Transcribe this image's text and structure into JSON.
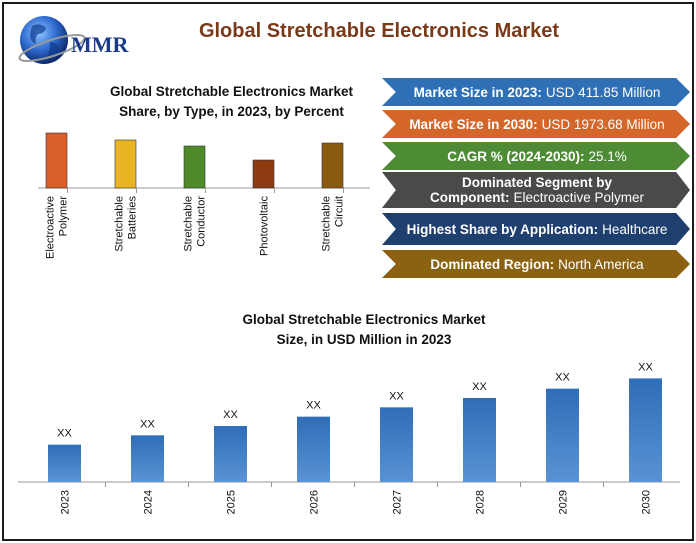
{
  "header": {
    "logo_text": "MMR",
    "title": "Global Stretchable Electronics Market"
  },
  "info_boxes": [
    {
      "label": "Market Size in 2023:",
      "value": "USD 411.85 Million",
      "color": "#2e6fb5"
    },
    {
      "label": "Market Size in 2030:",
      "value": "USD 1973.68 Million",
      "color": "#d4662a"
    },
    {
      "label": "CAGR % (2024-2030):",
      "value": "25.1%",
      "color": "#4e8b35"
    },
    {
      "label": "Dominated Segment by Component:",
      "value": "Electroactive Polymer",
      "color": "#4a4a4a"
    },
    {
      "label": "Highest Share by Application:",
      "value": "Healthcare",
      "color": "#1f3f6e"
    },
    {
      "label": "Dominated Region:",
      "value": "North America",
      "color": "#8a6212"
    }
  ],
  "chart_data": [
    {
      "type": "bar",
      "title": "Global Stretchable Electronics Market Share, by Type, in 2023, by Percent",
      "categories": [
        "Electroactive Polymer",
        "Stretchable Batteries",
        "Stretchable Conductor",
        "Photovoltaic",
        "Stretchable Circuit"
      ],
      "values": [
        55,
        48,
        42,
        28,
        45
      ],
      "colors": [
        "#d9602a",
        "#e8b423",
        "#4f8a2a",
        "#8e3a12",
        "#8a5a10"
      ],
      "ylim": [
        0,
        60
      ],
      "grid": false,
      "legend": "none"
    },
    {
      "type": "bar",
      "title": "Global Stretchable Electronics Market Size, in USD Million in 2023",
      "categories": [
        "2023",
        "2024",
        "2025",
        "2026",
        "2027",
        "2028",
        "2029",
        "2030"
      ],
      "values": [
        40,
        50,
        60,
        70,
        80,
        90,
        100,
        111
      ],
      "data_labels": [
        "XX",
        "XX",
        "XX",
        "XX",
        "XX",
        "XX",
        "XX",
        "XX"
      ],
      "color": "#2e6fb5",
      "ylim": [
        0,
        120
      ],
      "grid": false,
      "legend": "none"
    }
  ]
}
